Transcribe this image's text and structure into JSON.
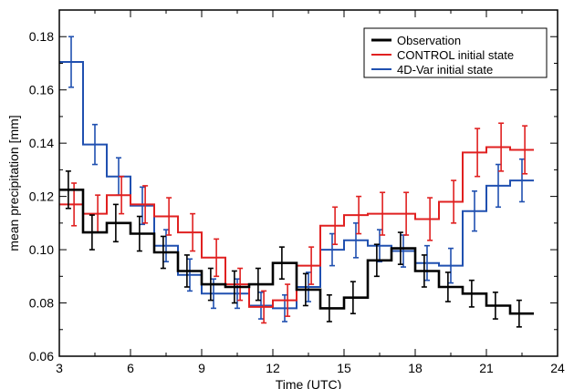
{
  "chart_data": {
    "type": "line",
    "step": true,
    "title": "",
    "xlabel": "Time  (UTC)",
    "ylabel": "mean precipitation [mm]",
    "xlim": [
      3,
      24
    ],
    "ylim": [
      0.06,
      0.19
    ],
    "x_ticks": [
      "3",
      "6",
      "9",
      "12",
      "15",
      "18",
      "21",
      "24"
    ],
    "y_ticks": [
      "0.06",
      "0.08",
      "0.10",
      "0.12",
      "0.14",
      "0.16",
      "0.18"
    ],
    "x": [
      3.5,
      4.5,
      5.5,
      6.5,
      7.5,
      8.5,
      9.5,
      10.5,
      11.5,
      12.5,
      13.5,
      14.5,
      15.5,
      16.5,
      17.5,
      18.5,
      19.5,
      20.5,
      21.5,
      22.5
    ],
    "legend_position": "top-right",
    "series": [
      {
        "name": "Observation",
        "color": "#000000",
        "values": [
          0.1225,
          0.1065,
          0.11,
          0.106,
          0.099,
          0.092,
          0.087,
          0.086,
          0.087,
          0.095,
          0.085,
          0.078,
          0.082,
          0.096,
          0.1005,
          0.092,
          0.086,
          0.0835,
          0.079,
          0.076
        ],
        "errors": [
          0.007,
          0.0065,
          0.007,
          0.0065,
          0.006,
          0.006,
          0.006,
          0.006,
          0.006,
          0.006,
          0.006,
          0.005,
          0.006,
          0.006,
          0.006,
          0.006,
          0.0055,
          0.005,
          0.005,
          0.005
        ]
      },
      {
        "name": "CONTROL initial state",
        "color": "#e02020",
        "values": [
          0.117,
          0.1135,
          0.1205,
          0.117,
          0.1125,
          0.1065,
          0.097,
          0.087,
          0.0785,
          0.081,
          0.094,
          0.109,
          0.113,
          0.1135,
          0.1135,
          0.1115,
          0.118,
          0.1365,
          0.1385,
          0.1375
        ],
        "errors": [
          0.008,
          0.007,
          0.007,
          0.007,
          0.007,
          0.007,
          0.007,
          0.006,
          0.006,
          0.006,
          0.007,
          0.007,
          0.007,
          0.008,
          0.008,
          0.008,
          0.008,
          0.009,
          0.009,
          0.009
        ]
      },
      {
        "name": "4D-Var initial state",
        "color": "#2050b0",
        "values": [
          0.1705,
          0.1395,
          0.1275,
          0.1165,
          0.1015,
          0.0905,
          0.0835,
          0.0835,
          0.079,
          0.078,
          0.086,
          0.1,
          0.1035,
          0.1015,
          0.0995,
          0.095,
          0.094,
          0.1145,
          0.124,
          0.126
        ],
        "errors": [
          0.0095,
          0.0075,
          0.007,
          0.007,
          0.006,
          0.006,
          0.0055,
          0.0055,
          0.005,
          0.005,
          0.0055,
          0.006,
          0.0065,
          0.006,
          0.006,
          0.0065,
          0.0065,
          0.0075,
          0.008,
          0.008
        ]
      }
    ]
  }
}
